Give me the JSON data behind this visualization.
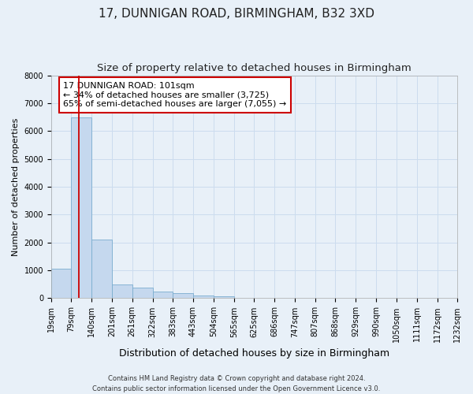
{
  "title": "17, DUNNIGAN ROAD, BIRMINGHAM, B32 3XD",
  "subtitle": "Size of property relative to detached houses in Birmingham",
  "xlabel": "Distribution of detached houses by size in Birmingham",
  "ylabel": "Number of detached properties",
  "footer_line1": "Contains HM Land Registry data © Crown copyright and database right 2024.",
  "footer_line2": "Contains public sector information licensed under the Open Government Licence v3.0.",
  "bar_color": "#c5d8ee",
  "bar_edge_color": "#7aadcf",
  "bar_left_edges": [
    19,
    79,
    140,
    201,
    261,
    322,
    383,
    443,
    504,
    565,
    625,
    686,
    747,
    807,
    868,
    929,
    990,
    1050,
    1111,
    1172
  ],
  "bar_widths": [
    60,
    61,
    61,
    60,
    61,
    61,
    60,
    61,
    61,
    60,
    61,
    61,
    60,
    61,
    61,
    61,
    60,
    61,
    61,
    60
  ],
  "bar_heights": [
    1050,
    6500,
    2100,
    490,
    380,
    240,
    175,
    100,
    60,
    0,
    0,
    0,
    0,
    0,
    0,
    0,
    0,
    0,
    0,
    0
  ],
  "property_size": 101,
  "annotation_line1": "17 DUNNIGAN ROAD: 101sqm",
  "annotation_line2": "← 34% of detached houses are smaller (3,725)",
  "annotation_line3": "65% of semi-detached houses are larger (7,055) →",
  "annotation_box_color": "#ffffff",
  "annotation_box_edge_color": "#cc0000",
  "vline_color": "#cc0000",
  "ylim": [
    0,
    8000
  ],
  "yticks": [
    0,
    1000,
    2000,
    3000,
    4000,
    5000,
    6000,
    7000,
    8000
  ],
  "xtick_labels": [
    "19sqm",
    "79sqm",
    "140sqm",
    "201sqm",
    "261sqm",
    "322sqm",
    "383sqm",
    "443sqm",
    "504sqm",
    "565sqm",
    "625sqm",
    "686sqm",
    "747sqm",
    "807sqm",
    "868sqm",
    "929sqm",
    "990sqm",
    "1050sqm",
    "1111sqm",
    "1172sqm",
    "1232sqm"
  ],
  "grid_color": "#ccdcee",
  "bg_color": "#e8f0f8",
  "plot_bg_color": "#e8f0f8",
  "title_fontsize": 11,
  "subtitle_fontsize": 9.5,
  "xlabel_fontsize": 9,
  "ylabel_fontsize": 8,
  "tick_fontsize": 7,
  "annotation_fontsize": 8,
  "footer_fontsize": 6
}
